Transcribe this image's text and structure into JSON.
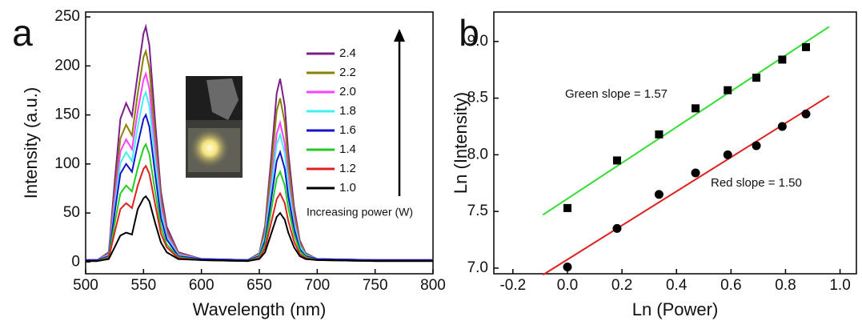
{
  "chart_data": [
    {
      "type": "line",
      "panel_label": "a",
      "x_label": "Wavelength (nm)",
      "y_label": "Intensity (a.u.)",
      "x": [
        500,
        510,
        520,
        525,
        530,
        535,
        540,
        545,
        550,
        552,
        555,
        560,
        565,
        570,
        580,
        600,
        640,
        650,
        655,
        660,
        665,
        668,
        672,
        675,
        680,
        685,
        690,
        700,
        750,
        800
      ],
      "xlim": [
        500,
        800
      ],
      "xticks": [
        500,
        550,
        600,
        650,
        700,
        750,
        800
      ],
      "ylim": [
        -12,
        255
      ],
      "yticks": [
        0,
        50,
        100,
        150,
        200,
        250
      ],
      "series": [
        {
          "name": "2.4",
          "color": "#7b1f8a",
          "values": [
            2,
            2,
            10,
            81,
            146,
            162,
            149,
            192,
            233,
            240,
            221,
            144,
            72,
            36,
            10,
            3,
            2,
            9,
            37,
            103,
            172,
            187,
            159,
            112,
            56,
            22,
            9,
            3,
            2,
            2
          ]
        },
        {
          "name": "2.2",
          "color": "#8b8000",
          "values": [
            2,
            2,
            9,
            70,
            126,
            140,
            129,
            172,
            209,
            215,
            198,
            129,
            65,
            32,
            9,
            3,
            2,
            8,
            33,
            92,
            154,
            167,
            142,
            100,
            50,
            20,
            8,
            3,
            2,
            2
          ]
        },
        {
          "name": "2.0",
          "color": "#ff40ff",
          "values": [
            2,
            2,
            8,
            63,
            113,
            125,
            115,
            154,
            186,
            192,
            177,
            115,
            58,
            29,
            8,
            3,
            2,
            7,
            28,
            78,
            131,
            142,
            121,
            85,
            43,
            17,
            7,
            3,
            2,
            2
          ]
        },
        {
          "name": "1.8",
          "color": "#40f0f0",
          "values": [
            2,
            2,
            7,
            56,
            101,
            112,
            103,
            138,
            168,
            173,
            159,
            104,
            52,
            26,
            7,
            3,
            2,
            7,
            26,
            72,
            120,
            130,
            111,
            78,
            39,
            16,
            7,
            3,
            2,
            2
          ]
        },
        {
          "name": "1.6",
          "color": "#1414c8",
          "values": [
            2,
            2,
            6,
            50,
            90,
            100,
            92,
            120,
            146,
            150,
            138,
            90,
            45,
            23,
            6,
            3,
            2,
            6,
            22,
            62,
            103,
            112,
            95,
            67,
            34,
            13,
            6,
            3,
            2,
            2
          ]
        },
        {
          "name": "1.4",
          "color": "#22cc22",
          "values": [
            1,
            1,
            5,
            39,
            70,
            78,
            72,
            96,
            116,
            120,
            110,
            72,
            36,
            18,
            5,
            2,
            1,
            5,
            18,
            51,
            85,
            92,
            78,
            55,
            28,
            11,
            5,
            2,
            1,
            1
          ]
        },
        {
          "name": "1.2",
          "color": "#e02020",
          "values": [
            1,
            1,
            4,
            30,
            54,
            60,
            55,
            78,
            95,
            98,
            90,
            59,
            29,
            15,
            4,
            2,
            1,
            4,
            14,
            39,
            64,
            70,
            60,
            42,
            21,
            8,
            4,
            2,
            1,
            1
          ]
        },
        {
          "name": "1.0",
          "color": "#000000",
          "values": [
            1,
            1,
            3,
            15,
            27,
            30,
            28,
            54,
            65,
            67,
            62,
            40,
            20,
            10,
            3,
            2,
            1,
            3,
            10,
            28,
            46,
            50,
            43,
            30,
            15,
            6,
            3,
            2,
            1,
            1
          ]
        }
      ],
      "annotations": [
        "Increasing power (W)"
      ]
    },
    {
      "type": "scatter",
      "panel_label": "b",
      "x_label": "Ln (Power)",
      "y_label": "Ln (Intensity)",
      "xlim": [
        -0.27,
        1.06
      ],
      "xticks": [
        -0.2,
        {
          "value": 0,
          "label": "0.0"
        },
        0.2,
        0.4,
        0.6,
        0.8,
        {
          "value": 1,
          "label": "1.0"
        }
      ],
      "ylim": [
        6.95,
        9.26
      ],
      "yticks": [
        {
          "value": 7,
          "label": "7.0"
        },
        7.5,
        {
          "value": 8,
          "label": "8.0"
        },
        8.5,
        {
          "value": 9,
          "label": "9.0"
        }
      ],
      "series": [
        {
          "marker": "square",
          "color": "#000000",
          "x": [
            0,
            0.182,
            0.336,
            0.47,
            0.588,
            0.693,
            0.788,
            0.875
          ],
          "values": [
            7.53,
            7.95,
            8.18,
            8.41,
            8.57,
            8.68,
            8.84,
            8.95
          ],
          "fit": {
            "color": "#33dd33",
            "x": [
              -0.09,
              0.96
            ],
            "values": [
              7.47,
              9.13
            ]
          }
        },
        {
          "marker": "circle",
          "color": "#000000",
          "x": [
            0,
            0.182,
            0.336,
            0.47,
            0.588,
            0.693,
            0.788,
            0.875
          ],
          "values": [
            7.01,
            7.35,
            7.65,
            7.84,
            8.0,
            8.08,
            8.25,
            8.36
          ],
          "fit": {
            "color": "#e02020",
            "x": [
              -0.09,
              0.96
            ],
            "values": [
              6.94,
              8.52
            ]
          }
        }
      ],
      "annotations": [
        "Green slope = 1.57",
        "Red slope = 1.50"
      ]
    }
  ]
}
